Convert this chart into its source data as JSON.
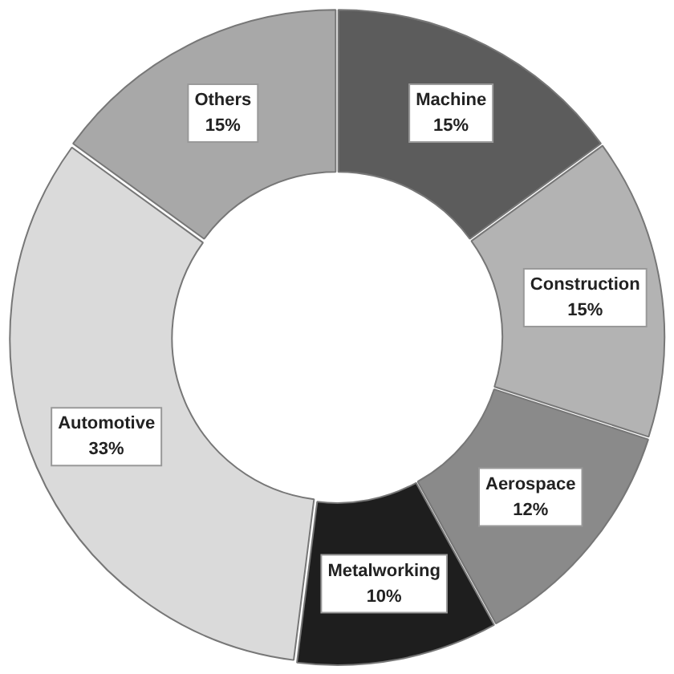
{
  "chart_data": {
    "type": "donut",
    "categories": [
      "Machine",
      "Construction",
      "Aerospace",
      "Metalworking",
      "Automotive",
      "Others"
    ],
    "values": [
      15,
      15,
      12,
      10,
      33,
      15
    ],
    "colors": [
      "#5c5c5c",
      "#b3b3b3",
      "#8a8a8a",
      "#1e1e1e",
      "#dadada",
      "#a8a8a8"
    ],
    "value_labels": [
      "15%",
      "15%",
      "12%",
      "10%",
      "33%",
      "15%"
    ],
    "legend": false
  }
}
